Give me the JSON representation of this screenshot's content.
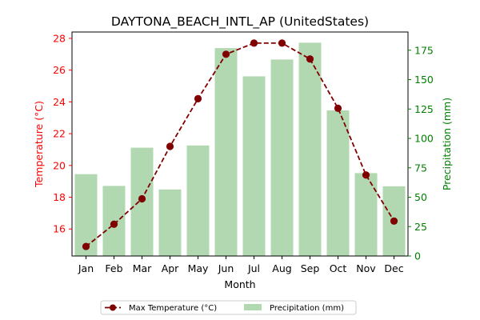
{
  "chart_data": {
    "type": "bar+line",
    "title": "DAYTONA_BEACH_INTL_AP (UnitedStates)",
    "xlabel": "Month",
    "categories": [
      "Jan",
      "Feb",
      "Mar",
      "Apr",
      "May",
      "Jun",
      "Jul",
      "Aug",
      "Sep",
      "Oct",
      "Nov",
      "Dec"
    ],
    "left_axis": {
      "label": "Temperature (°C)",
      "ylim": [
        14.3,
        28.4
      ],
      "ticks": [
        16,
        18,
        20,
        22,
        24,
        26,
        28
      ],
      "color": "#ff0000"
    },
    "right_axis": {
      "label": "Precipitation (mm)",
      "ylim": [
        0,
        190.5
      ],
      "ticks": [
        0,
        25,
        50,
        75,
        100,
        125,
        150,
        175
      ],
      "color": "#008000"
    },
    "series": [
      {
        "name": "Max Temperature (°C)",
        "type": "line",
        "axis": "left",
        "color": "#800000",
        "linestyle": "dashed",
        "marker": "circle",
        "values": [
          14.9,
          16.3,
          17.9,
          21.2,
          24.2,
          27.0,
          27.7,
          27.7,
          26.7,
          23.6,
          19.4,
          16.5
        ]
      },
      {
        "name": "Precipitation (mm)",
        "type": "bar",
        "axis": "right",
        "color": "#b2d8b2",
        "values": [
          69.6,
          59.6,
          92.1,
          56.6,
          94.0,
          176.8,
          152.8,
          167.1,
          181.4,
          123.8,
          70.5,
          59.3
        ]
      }
    ],
    "legend": {
      "placement": "bottom-center",
      "ncol": 2
    },
    "grid": false
  }
}
